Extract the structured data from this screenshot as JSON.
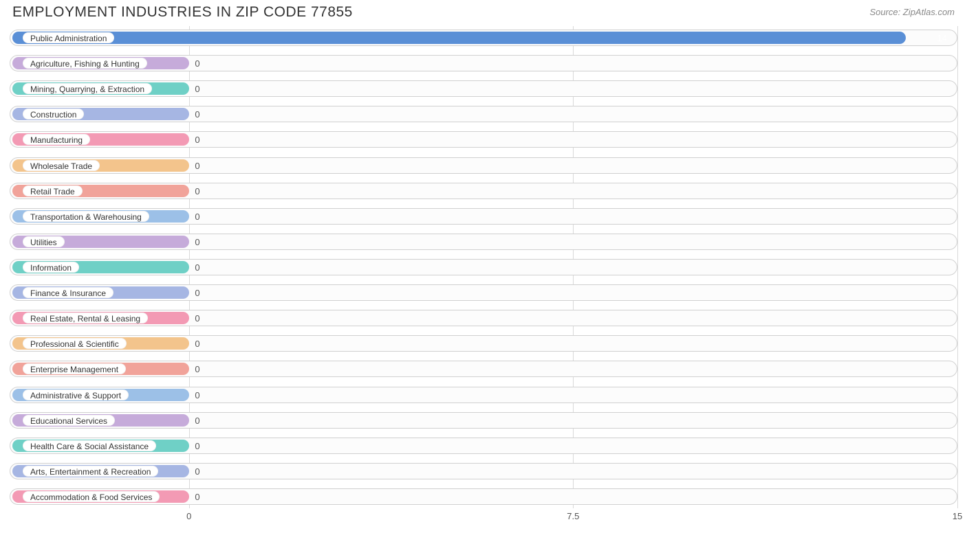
{
  "title": "EMPLOYMENT INDUSTRIES IN ZIP CODE 77855",
  "source": "Source: ZipAtlas.com",
  "chart": {
    "type": "bar-horizontal",
    "x_min": -3.5,
    "x_max": 15,
    "x_ticks": [
      0,
      7.5,
      15
    ],
    "track_border_color": "#d0d0d0",
    "track_bg": "#fcfcfc",
    "gridline_color": "#d9d9d9",
    "label_pill_bg": "#ffffff",
    "label_font_size": 12,
    "value_font_size": 13,
    "min_bar_value_for_width": -3.5,
    "rows": [
      {
        "label": "Public Administration",
        "value": 14,
        "color": "#5a8fd6",
        "value_inside": true
      },
      {
        "label": "Agriculture, Fishing & Hunting",
        "value": 0,
        "color": "#c6abda",
        "value_inside": false
      },
      {
        "label": "Mining, Quarrying, & Extraction",
        "value": 0,
        "color": "#6fd0c6",
        "value_inside": false
      },
      {
        "label": "Construction",
        "value": 0,
        "color": "#a6b6e3",
        "value_inside": false
      },
      {
        "label": "Manufacturing",
        "value": 0,
        "color": "#f39ab4",
        "value_inside": false
      },
      {
        "label": "Wholesale Trade",
        "value": 0,
        "color": "#f3c48c",
        "value_inside": false
      },
      {
        "label": "Retail Trade",
        "value": 0,
        "color": "#f1a39a",
        "value_inside": false
      },
      {
        "label": "Transportation & Warehousing",
        "value": 0,
        "color": "#9cc0e7",
        "value_inside": false
      },
      {
        "label": "Utilities",
        "value": 0,
        "color": "#c6abda",
        "value_inside": false
      },
      {
        "label": "Information",
        "value": 0,
        "color": "#6fd0c6",
        "value_inside": false
      },
      {
        "label": "Finance & Insurance",
        "value": 0,
        "color": "#a6b6e3",
        "value_inside": false
      },
      {
        "label": "Real Estate, Rental & Leasing",
        "value": 0,
        "color": "#f39ab4",
        "value_inside": false
      },
      {
        "label": "Professional & Scientific",
        "value": 0,
        "color": "#f3c48c",
        "value_inside": false
      },
      {
        "label": "Enterprise Management",
        "value": 0,
        "color": "#f1a39a",
        "value_inside": false
      },
      {
        "label": "Administrative & Support",
        "value": 0,
        "color": "#9cc0e7",
        "value_inside": false
      },
      {
        "label": "Educational Services",
        "value": 0,
        "color": "#c6abda",
        "value_inside": false
      },
      {
        "label": "Health Care & Social Assistance",
        "value": 0,
        "color": "#6fd0c6",
        "value_inside": false
      },
      {
        "label": "Arts, Entertainment & Recreation",
        "value": 0,
        "color": "#a6b6e3",
        "value_inside": false
      },
      {
        "label": "Accommodation & Food Services",
        "value": 0,
        "color": "#f39ab4",
        "value_inside": false
      }
    ]
  }
}
